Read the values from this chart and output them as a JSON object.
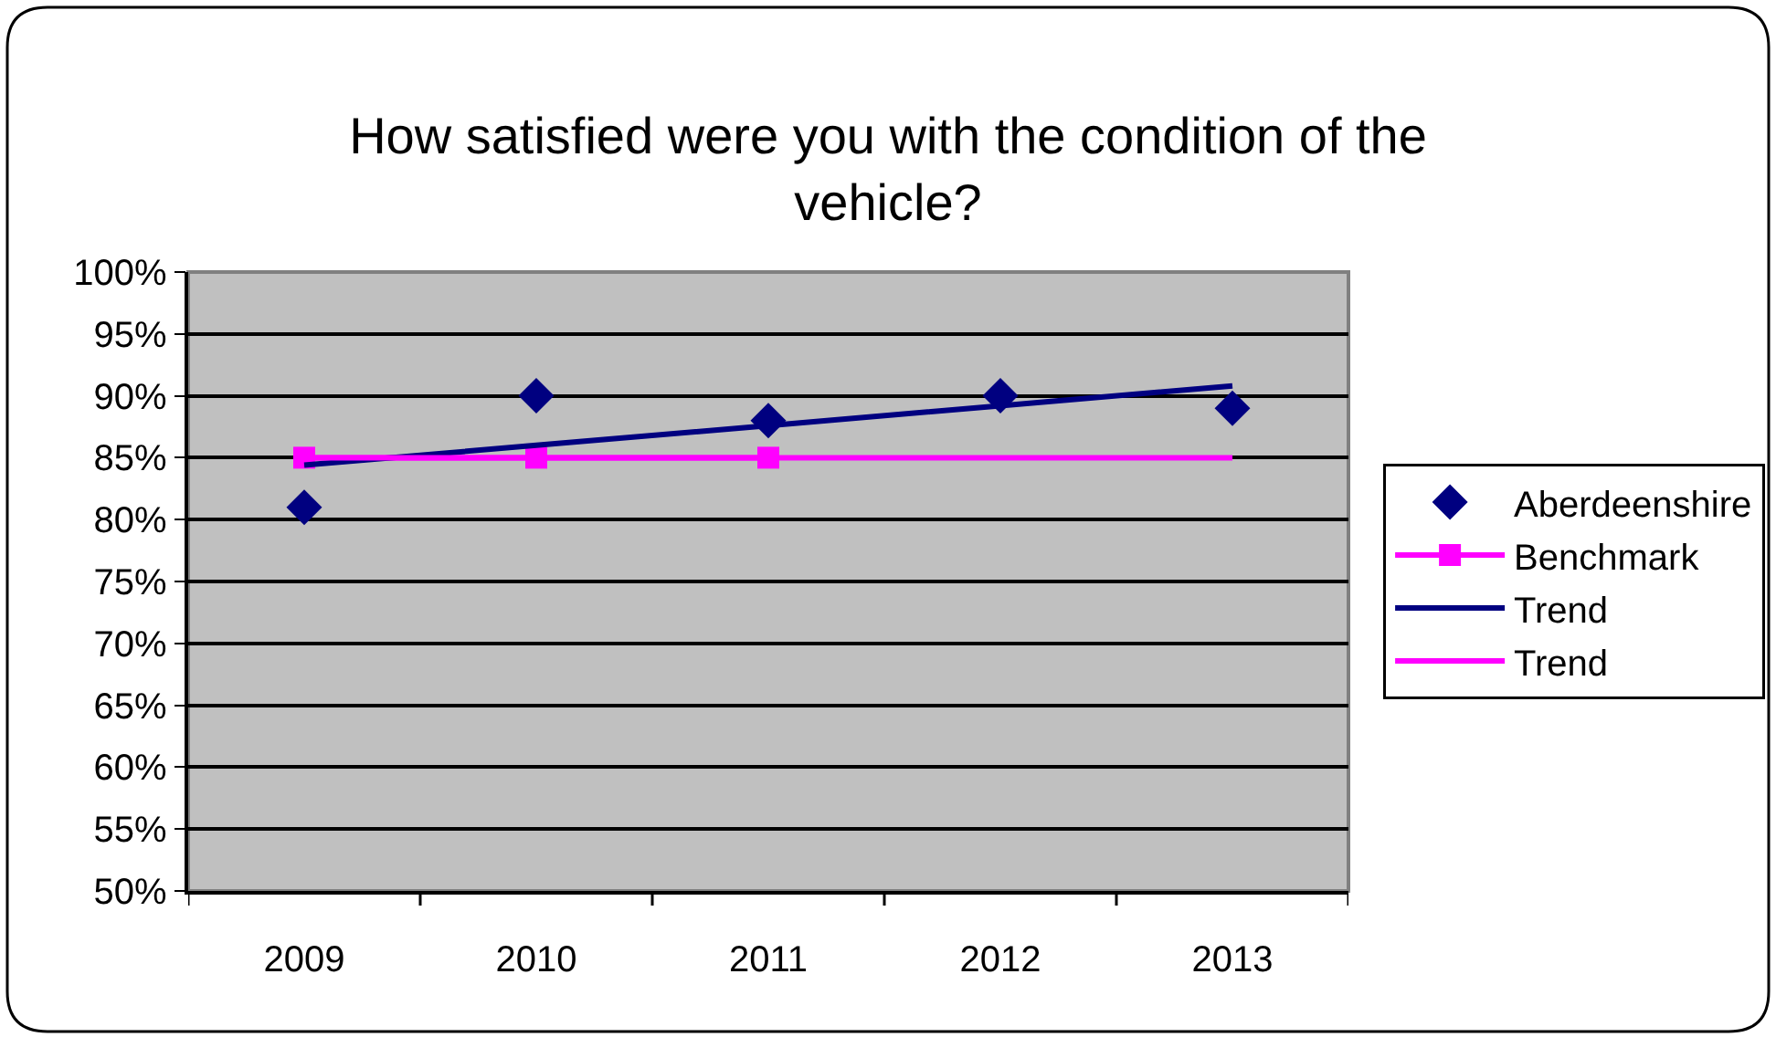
{
  "chart_data": {
    "type": "line",
    "title": "How satisfied were you with the condition of the\nvehicle?",
    "categories": [
      "2009",
      "2010",
      "2011",
      "2012",
      "2013"
    ],
    "series": [
      {
        "name": "Aberdeenshire",
        "type": "scatter",
        "marker": "diamond",
        "color": "#000080",
        "values": [
          81,
          90,
          88,
          90,
          89
        ]
      },
      {
        "name": "Benchmark",
        "marker": "square",
        "color": "#ff00ff",
        "values": [
          85,
          85,
          85,
          null,
          null
        ]
      },
      {
        "name": "Trend",
        "marker": "none",
        "color": "#000080",
        "values": [
          84.4,
          86,
          87.6,
          89.2,
          90.8
        ]
      },
      {
        "name": "Trend",
        "marker": "none",
        "color": "#ff00ff",
        "values": [
          85,
          85,
          85,
          85,
          85
        ]
      }
    ],
    "ylim": [
      50,
      100
    ],
    "yticks": [
      {
        "value": 50,
        "label": "50%"
      },
      {
        "value": 55,
        "label": "55%"
      },
      {
        "value": 60,
        "label": "60%"
      },
      {
        "value": 65,
        "label": "65%"
      },
      {
        "value": 70,
        "label": "70%"
      },
      {
        "value": 75,
        "label": "75%"
      },
      {
        "value": 80,
        "label": "80%"
      },
      {
        "value": 85,
        "label": "85%"
      },
      {
        "value": 90,
        "label": "90%"
      },
      {
        "value": 95,
        "label": "95%"
      },
      {
        "value": 100,
        "label": "100%"
      }
    ],
    "grid": "y",
    "legend": "right",
    "line_style": "solid"
  }
}
